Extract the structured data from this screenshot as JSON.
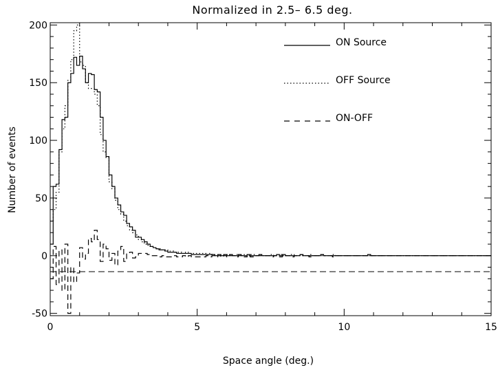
{
  "chart_data": {
    "type": "line",
    "title": "Normalized in    2.5–    6.5 deg.",
    "xlabel": "Space angle (deg.)",
    "ylabel": "Number of events",
    "xlim": [
      0,
      15
    ],
    "ylim": [
      -52,
      202
    ],
    "x_ticks": [
      0,
      5,
      10,
      15
    ],
    "x_tick_labels": [
      "0",
      "5",
      "10",
      "15"
    ],
    "y_ticks": [
      -50,
      0,
      50,
      100,
      150,
      200
    ],
    "y_tick_labels": [
      "-50",
      "0",
      "50",
      "100",
      "150",
      "200"
    ],
    "bin_width": 0.1,
    "grid": false,
    "legend_position": "top-right",
    "series": [
      {
        "name": "ON Source",
        "style": "solid",
        "values": [
          10,
          60,
          62,
          92,
          118,
          120,
          150,
          158,
          172,
          165,
          173,
          162,
          150,
          158,
          157,
          144,
          142,
          120,
          100,
          86,
          70,
          60,
          50,
          44,
          38,
          35,
          28,
          25,
          22,
          16,
          16,
          14,
          12,
          10,
          8,
          7,
          6,
          5,
          5,
          4,
          3,
          3,
          3,
          2,
          2,
          2,
          2,
          2,
          1,
          1,
          1,
          1,
          1,
          1,
          1,
          1,
          0,
          1,
          0,
          1,
          0,
          1,
          0,
          0,
          1,
          0,
          0,
          1,
          0,
          0,
          0,
          1,
          0,
          0,
          0,
          0,
          0,
          1,
          0,
          1,
          0,
          0,
          0,
          0,
          0,
          1,
          0,
          0,
          0,
          0,
          0,
          0,
          1,
          0,
          0,
          0,
          0,
          0,
          0,
          0,
          0,
          0,
          0,
          0,
          0,
          0,
          0,
          0,
          1,
          0,
          0,
          0,
          0,
          0,
          0,
          0,
          0,
          0,
          0,
          0,
          0,
          0,
          0,
          0,
          0,
          0,
          0,
          0,
          0,
          0,
          0,
          0,
          0,
          0,
          0,
          0,
          0,
          0,
          0,
          0,
          0,
          0,
          0,
          0,
          0,
          0,
          0,
          0,
          0,
          0
        ]
      },
      {
        "name": "OFF Source",
        "style": "dotted",
        "values": [
          30,
          40,
          55,
          90,
          110,
          130,
          152,
          170,
          195,
          200,
          168,
          165,
          150,
          145,
          145,
          140,
          130,
          105,
          90,
          85,
          64,
          58,
          48,
          40,
          36,
          30,
          26,
          22,
          20,
          18,
          14,
          12,
          10,
          9,
          8,
          7,
          6,
          6,
          5,
          5,
          4,
          4,
          3,
          3,
          3,
          2,
          3,
          2,
          2,
          2,
          2,
          2,
          2,
          1,
          2,
          1,
          1,
          1,
          1,
          1,
          1,
          1,
          0,
          1,
          1,
          0,
          1,
          0,
          1,
          1,
          0,
          1,
          0,
          0,
          0,
          1,
          0,
          0,
          1,
          0,
          0,
          0,
          1,
          0,
          0,
          0,
          0,
          0,
          1,
          0,
          0,
          0,
          0,
          0,
          0,
          0,
          1,
          0,
          0,
          0,
          0,
          0,
          0,
          0,
          0,
          0,
          0,
          0,
          0,
          0,
          0,
          0,
          0,
          0,
          0,
          0,
          0,
          0,
          0,
          0,
          0,
          0,
          0,
          0,
          0,
          0,
          0,
          0,
          0,
          0,
          0,
          0,
          0,
          0,
          0,
          0,
          0,
          0,
          0,
          0,
          0,
          0,
          0,
          0,
          0,
          0,
          0,
          0,
          0,
          0
        ]
      },
      {
        "name": "ON-OFF",
        "style": "dashed",
        "values": [
          -20,
          8,
          -25,
          5,
          -30,
          10,
          -50,
          -10,
          -23,
          -15,
          7,
          -3,
          2,
          15,
          12,
          22,
          14,
          -5,
          10,
          6,
          -4,
          2,
          -8,
          4,
          8,
          -5,
          2,
          3,
          -2,
          -1,
          2,
          2,
          2,
          1,
          0,
          0,
          0,
          -1,
          0,
          -1,
          -1,
          -1,
          0,
          -1,
          -1,
          0,
          -1,
          0,
          -1,
          -1,
          -1,
          -1,
          -1,
          0,
          -1,
          0,
          -1,
          0,
          -1,
          0,
          -1,
          0,
          0,
          -1,
          0,
          0,
          -1,
          1,
          -1,
          -1,
          0,
          0,
          0,
          0,
          0,
          -1,
          0,
          0,
          -1,
          1,
          0,
          0,
          -1,
          0,
          0,
          1,
          0,
          0,
          -1,
          0,
          0,
          0,
          1,
          0,
          0,
          0,
          -1,
          0,
          0,
          0,
          0,
          0,
          0,
          0,
          0,
          0,
          0,
          0,
          1,
          0,
          0,
          0,
          0,
          0,
          0,
          0,
          0,
          0,
          0,
          0,
          0,
          0,
          0,
          0,
          0,
          0,
          0,
          0,
          0,
          0,
          0,
          0,
          0,
          0,
          0,
          0,
          0,
          0,
          0,
          0,
          0,
          0,
          0,
          0,
          0,
          0,
          0,
          0,
          0,
          0
        ]
      }
    ]
  }
}
